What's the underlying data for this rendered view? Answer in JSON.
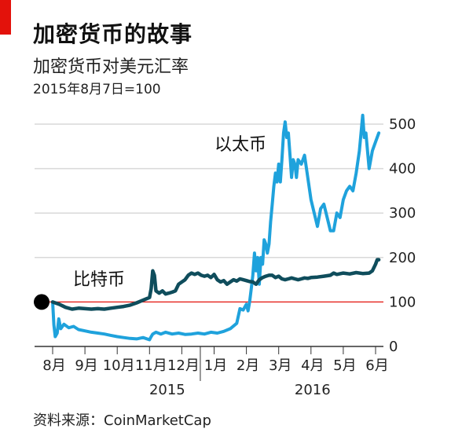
{
  "header": {
    "title": "加密货币的故事",
    "subtitle": "加密货币对美元汇率",
    "note": "2015年8月7日=100"
  },
  "source": "资料来源：CoinMarketCap",
  "colors": {
    "brand_red": "#e3120b",
    "ether": "#1fa2dc",
    "bitcoin": "#0f4d5c",
    "baseline": "#e3120b",
    "grid": "#d9d9d9"
  },
  "chart_data": {
    "type": "line",
    "ylim": [
      0,
      500
    ],
    "yticks": [
      0,
      100,
      200,
      300,
      400,
      500
    ],
    "x_month_labels": [
      "8月",
      "9月",
      "10月",
      "11月",
      "12月",
      "1月",
      "2月",
      "3月",
      "4月",
      "5月",
      "6月"
    ],
    "x_years": [
      {
        "label": "2015",
        "month_index": 3.5
      },
      {
        "label": "2016",
        "month_index": 8.0
      }
    ],
    "baseline": 100,
    "grid": true,
    "start_marker": "2015-08-07",
    "series": [
      {
        "name": "以太币",
        "color": "#1fa2dc",
        "points": [
          [
            0.0,
            100
          ],
          [
            0.04,
            48
          ],
          [
            0.08,
            22
          ],
          [
            0.14,
            30
          ],
          [
            0.19,
            62
          ],
          [
            0.25,
            40
          ],
          [
            0.35,
            50
          ],
          [
            0.5,
            42
          ],
          [
            0.65,
            45
          ],
          [
            0.8,
            38
          ],
          [
            1.0,
            35
          ],
          [
            1.2,
            32
          ],
          [
            1.4,
            30
          ],
          [
            1.6,
            28
          ],
          [
            1.8,
            25
          ],
          [
            2.0,
            22
          ],
          [
            2.2,
            20
          ],
          [
            2.4,
            18
          ],
          [
            2.6,
            17
          ],
          [
            2.8,
            20
          ],
          [
            3.0,
            15
          ],
          [
            3.05,
            22
          ],
          [
            3.1,
            28
          ],
          [
            3.2,
            32
          ],
          [
            3.35,
            28
          ],
          [
            3.5,
            32
          ],
          [
            3.7,
            28
          ],
          [
            3.9,
            30
          ],
          [
            4.1,
            27
          ],
          [
            4.3,
            28
          ],
          [
            4.5,
            30
          ],
          [
            4.7,
            28
          ],
          [
            4.9,
            32
          ],
          [
            5.1,
            30
          ],
          [
            5.3,
            34
          ],
          [
            5.5,
            40
          ],
          [
            5.7,
            52
          ],
          [
            5.8,
            85
          ],
          [
            5.9,
            82
          ],
          [
            6.0,
            95
          ],
          [
            6.05,
            80
          ],
          [
            6.1,
            100
          ],
          [
            6.15,
            130
          ],
          [
            6.2,
            160
          ],
          [
            6.25,
            210
          ],
          [
            6.3,
            170
          ],
          [
            6.35,
            200
          ],
          [
            6.4,
            140
          ],
          [
            6.45,
            200
          ],
          [
            6.5,
            185
          ],
          [
            6.55,
            240
          ],
          [
            6.6,
            230
          ],
          [
            6.65,
            210
          ],
          [
            6.7,
            230
          ],
          [
            6.75,
            280
          ],
          [
            6.8,
            320
          ],
          [
            6.85,
            360
          ],
          [
            6.9,
            390
          ],
          [
            6.95,
            370
          ],
          [
            7.0,
            410
          ],
          [
            7.05,
            370
          ],
          [
            7.1,
            420
          ],
          [
            7.15,
            480
          ],
          [
            7.2,
            505
          ],
          [
            7.25,
            470
          ],
          [
            7.3,
            480
          ],
          [
            7.35,
            430
          ],
          [
            7.4,
            380
          ],
          [
            7.45,
            420
          ],
          [
            7.5,
            410
          ],
          [
            7.55,
            380
          ],
          [
            7.6,
            420
          ],
          [
            7.7,
            410
          ],
          [
            7.8,
            430
          ],
          [
            7.9,
            380
          ],
          [
            8.0,
            330
          ],
          [
            8.1,
            300
          ],
          [
            8.2,
            270
          ],
          [
            8.3,
            310
          ],
          [
            8.4,
            320
          ],
          [
            8.5,
            290
          ],
          [
            8.6,
            260
          ],
          [
            8.7,
            260
          ],
          [
            8.8,
            300
          ],
          [
            8.9,
            290
          ],
          [
            9.0,
            330
          ],
          [
            9.1,
            350
          ],
          [
            9.2,
            360
          ],
          [
            9.3,
            350
          ],
          [
            9.4,
            390
          ],
          [
            9.5,
            440
          ],
          [
            9.6,
            520
          ],
          [
            9.65,
            470
          ],
          [
            9.7,
            480
          ],
          [
            9.8,
            400
          ],
          [
            9.9,
            440
          ],
          [
            10.0,
            460
          ],
          [
            10.1,
            480
          ]
        ]
      },
      {
        "name": "比特币",
        "color": "#0f4d5c",
        "points": [
          [
            0.0,
            100
          ],
          [
            0.2,
            95
          ],
          [
            0.4,
            88
          ],
          [
            0.6,
            84
          ],
          [
            0.8,
            86
          ],
          [
            1.0,
            85
          ],
          [
            1.2,
            84
          ],
          [
            1.4,
            85
          ],
          [
            1.6,
            84
          ],
          [
            1.8,
            86
          ],
          [
            2.0,
            88
          ],
          [
            2.2,
            90
          ],
          [
            2.4,
            93
          ],
          [
            2.6,
            98
          ],
          [
            2.8,
            104
          ],
          [
            3.0,
            110
          ],
          [
            3.05,
            130
          ],
          [
            3.1,
            170
          ],
          [
            3.15,
            160
          ],
          [
            3.2,
            125
          ],
          [
            3.3,
            120
          ],
          [
            3.4,
            125
          ],
          [
            3.5,
            118
          ],
          [
            3.6,
            120
          ],
          [
            3.7,
            122
          ],
          [
            3.8,
            125
          ],
          [
            3.9,
            140
          ],
          [
            4.0,
            145
          ],
          [
            4.1,
            150
          ],
          [
            4.2,
            160
          ],
          [
            4.3,
            165
          ],
          [
            4.4,
            162
          ],
          [
            4.5,
            165
          ],
          [
            4.6,
            160
          ],
          [
            4.7,
            158
          ],
          [
            4.8,
            160
          ],
          [
            4.9,
            155
          ],
          [
            5.0,
            162
          ],
          [
            5.1,
            150
          ],
          [
            5.2,
            145
          ],
          [
            5.3,
            148
          ],
          [
            5.4,
            140
          ],
          [
            5.5,
            145
          ],
          [
            5.6,
            150
          ],
          [
            5.7,
            147
          ],
          [
            5.8,
            152
          ],
          [
            5.9,
            150
          ],
          [
            6.0,
            148
          ],
          [
            6.1,
            146
          ],
          [
            6.2,
            145
          ],
          [
            6.3,
            140
          ],
          [
            6.4,
            150
          ],
          [
            6.5,
            155
          ],
          [
            6.6,
            158
          ],
          [
            6.7,
            160
          ],
          [
            6.8,
            160
          ],
          [
            6.9,
            155
          ],
          [
            7.0,
            158
          ],
          [
            7.1,
            152
          ],
          [
            7.2,
            150
          ],
          [
            7.3,
            152
          ],
          [
            7.4,
            154
          ],
          [
            7.5,
            152
          ],
          [
            7.6,
            150
          ],
          [
            7.7,
            152
          ],
          [
            7.8,
            154
          ],
          [
            7.9,
            153
          ],
          [
            8.0,
            155
          ],
          [
            8.2,
            156
          ],
          [
            8.4,
            158
          ],
          [
            8.6,
            160
          ],
          [
            8.7,
            165
          ],
          [
            8.8,
            162
          ],
          [
            9.0,
            165
          ],
          [
            9.2,
            163
          ],
          [
            9.4,
            166
          ],
          [
            9.6,
            164
          ],
          [
            9.8,
            165
          ],
          [
            9.9,
            170
          ],
          [
            10.0,
            185
          ],
          [
            10.05,
            195
          ],
          [
            10.1,
            195
          ]
        ]
      }
    ]
  }
}
